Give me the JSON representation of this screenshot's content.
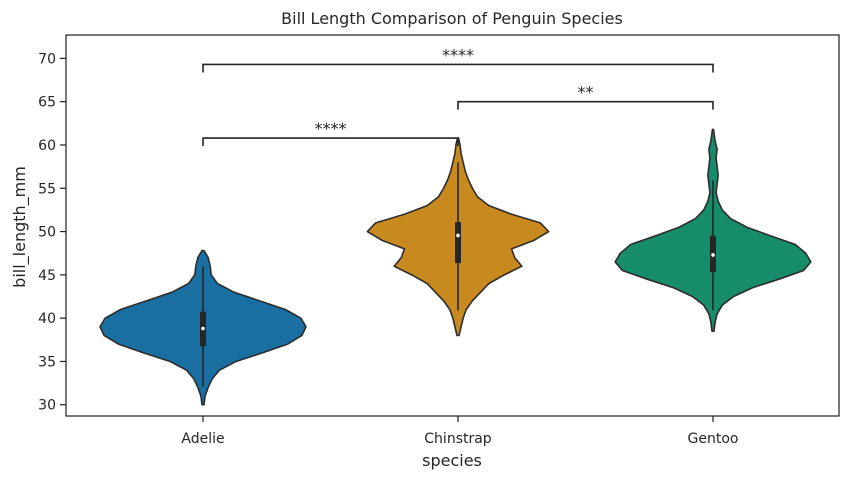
{
  "chart_data": {
    "type": "violin",
    "title": "Bill Length Comparison of Penguin Species",
    "xlabel": "species",
    "ylabel": "bill_length_mm",
    "categories": [
      "Adelie",
      "Chinstrap",
      "Gentoo"
    ],
    "colors": [
      "#1a6fa2",
      "#c8891e",
      "#168c6a"
    ],
    "ylim": [
      28.7,
      72.7
    ],
    "yticks": [
      30,
      35,
      40,
      45,
      50,
      55,
      60,
      65,
      70
    ],
    "grid": false,
    "violins": [
      {
        "category": "Adelie",
        "median": 38.8,
        "q1": 36.75,
        "q3": 40.75,
        "whisker_low": 32.1,
        "whisker_high": 46.0,
        "density": [
          [
            30.0,
            0.01
          ],
          [
            31.0,
            0.02
          ],
          [
            32.0,
            0.05
          ],
          [
            33.0,
            0.09
          ],
          [
            34.0,
            0.16
          ],
          [
            35.0,
            0.32
          ],
          [
            36.0,
            0.58
          ],
          [
            37.0,
            0.82
          ],
          [
            38.0,
            0.96
          ],
          [
            39.0,
            1.0
          ],
          [
            40.0,
            0.95
          ],
          [
            41.0,
            0.8
          ],
          [
            42.0,
            0.55
          ],
          [
            43.0,
            0.3
          ],
          [
            44.0,
            0.14
          ],
          [
            45.0,
            0.08
          ],
          [
            46.0,
            0.07
          ],
          [
            47.0,
            0.05
          ],
          [
            47.8,
            0.01
          ]
        ]
      },
      {
        "category": "Chinstrap",
        "median": 49.55,
        "q1": 46.35,
        "q3": 51.1,
        "whisker_low": 40.9,
        "whisker_high": 58.0,
        "density": [
          [
            38.0,
            0.01
          ],
          [
            39.0,
            0.03
          ],
          [
            40.0,
            0.05
          ],
          [
            41.0,
            0.08
          ],
          [
            42.0,
            0.14
          ],
          [
            43.0,
            0.22
          ],
          [
            44.0,
            0.3
          ],
          [
            45.0,
            0.45
          ],
          [
            46.0,
            0.62
          ],
          [
            47.0,
            0.55
          ],
          [
            48.0,
            0.52
          ],
          [
            49.0,
            0.74
          ],
          [
            50.0,
            0.88
          ],
          [
            51.0,
            0.8
          ],
          [
            52.0,
            0.52
          ],
          [
            53.0,
            0.3
          ],
          [
            54.0,
            0.19
          ],
          [
            55.0,
            0.14
          ],
          [
            56.0,
            0.1
          ],
          [
            57.0,
            0.07
          ],
          [
            58.0,
            0.05
          ],
          [
            59.0,
            0.03
          ],
          [
            60.0,
            0.02
          ],
          [
            60.8,
            0.005
          ]
        ]
      },
      {
        "category": "Gentoo",
        "median": 47.3,
        "q1": 45.3,
        "q3": 49.55,
        "whisker_low": 40.9,
        "whisker_high": 55.9,
        "density": [
          [
            38.5,
            0.01
          ],
          [
            39.5,
            0.02
          ],
          [
            40.5,
            0.04
          ],
          [
            41.5,
            0.09
          ],
          [
            42.5,
            0.2
          ],
          [
            43.5,
            0.38
          ],
          [
            44.5,
            0.64
          ],
          [
            45.5,
            0.88
          ],
          [
            46.5,
            0.95
          ],
          [
            47.5,
            0.9
          ],
          [
            48.5,
            0.8
          ],
          [
            49.5,
            0.56
          ],
          [
            50.5,
            0.33
          ],
          [
            51.5,
            0.17
          ],
          [
            52.5,
            0.09
          ],
          [
            53.5,
            0.05
          ],
          [
            54.5,
            0.03
          ],
          [
            55.5,
            0.04
          ],
          [
            56.5,
            0.05
          ],
          [
            57.5,
            0.04
          ],
          [
            58.5,
            0.03
          ],
          [
            59.5,
            0.04
          ],
          [
            60.5,
            0.02
          ],
          [
            61.8,
            0.005
          ]
        ]
      }
    ],
    "annotations": [
      {
        "from": "Adelie",
        "to": "Chinstrap",
        "y": 60.8,
        "label": "****"
      },
      {
        "from": "Chinstrap",
        "to": "Gentoo",
        "y": 65.0,
        "label": "**"
      },
      {
        "from": "Adelie",
        "to": "Gentoo",
        "y": 69.3,
        "label": "****"
      }
    ]
  }
}
